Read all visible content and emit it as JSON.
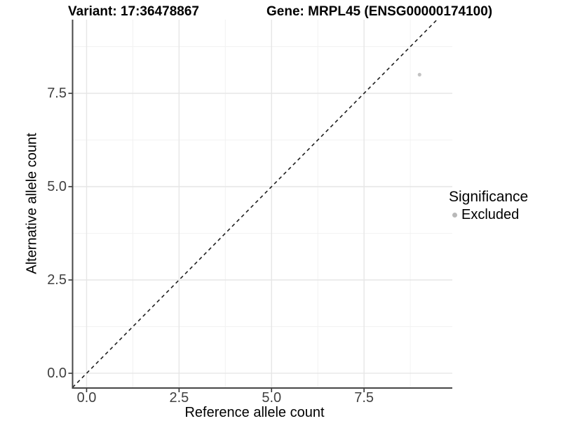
{
  "colors": {
    "background": "#ffffff",
    "grid_major": "#e6e6e6",
    "grid_minor": "#f2f2f2",
    "axis_line": "#464646",
    "tick_mark": "#333333",
    "tick_label": "#404040",
    "ref_line": "#1f1f1f",
    "point_fill": "#c3c3c3",
    "legend_marker": "#b9b9b9"
  },
  "chart_data": {
    "type": "scatter",
    "title_left": "Variant: 17:36478867",
    "title_right": "Gene: MRPL45 (ENSG00000174100)",
    "xlabel": "Reference allele count",
    "ylabel": "Alternative allele count",
    "xlim": [
      -0.379,
      9.886
    ],
    "ylim": [
      -0.395,
      9.474
    ],
    "x_ticks": {
      "values": [
        0,
        2.5,
        5,
        7.5
      ],
      "labels": [
        "0.0",
        "2.5",
        "5.0",
        "7.5"
      ]
    },
    "y_ticks": {
      "values": [
        0,
        2.5,
        5,
        7.5
      ],
      "labels": [
        "0.0",
        "2.5",
        "5.0",
        "7.5"
      ]
    },
    "x_minor": [
      1.25,
      3.75,
      6.25,
      8.75
    ],
    "y_minor": [
      1.25,
      3.75,
      6.25,
      8.75
    ],
    "grid": true,
    "points": [
      {
        "x": 9,
        "y": 8,
        "series": "Excluded"
      }
    ],
    "reference_line": {
      "slope": 1,
      "intercept": 0,
      "style": "dashed"
    },
    "legend": {
      "title": "Significance",
      "position": "right",
      "entries": [
        {
          "label": "Excluded",
          "marker": "dot"
        }
      ]
    }
  }
}
